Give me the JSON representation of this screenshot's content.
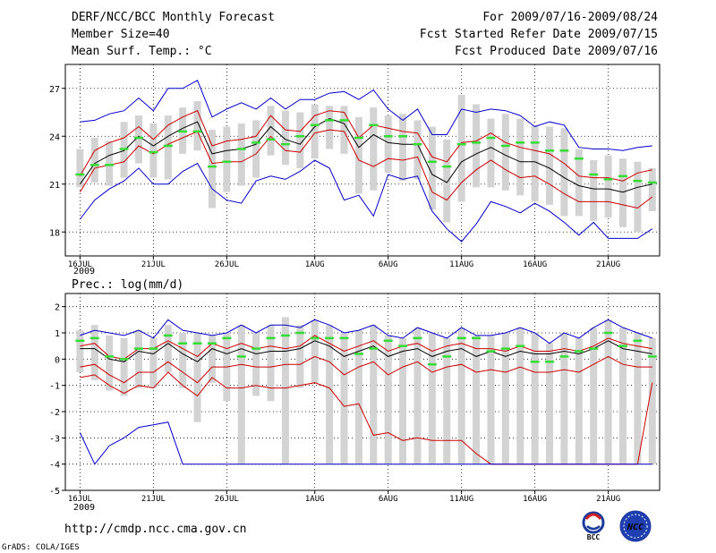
{
  "header": {
    "title": "DERF/NCC/BCC Monthly Forecast",
    "member_size": "Member Size=40",
    "variable": "Mean Surf. Temp.: °C",
    "period": "For 2009/07/16-2009/08/24",
    "refer_date": "Fcst Started Refer Date 2009/07/15",
    "produced_date": "Fcst Produced Date 2009/07/16"
  },
  "precip_title": "Prec.: log(mm/d)",
  "year_label": "2009",
  "footer": {
    "url": "http://cmdp.ncc.cma.gov.cn",
    "grads": "GrADS: COLA/IGES",
    "logo_bcc": "BCC",
    "logo_ncc": "NCC"
  },
  "colors": {
    "ensemble_mean": "#000000",
    "spread_inner": "#cc0000",
    "spread_outer": "#0000cc",
    "observed": "#33dd33",
    "box": "#d3d3d3",
    "grid": "#000000"
  },
  "chart_data": [
    {
      "type": "line",
      "name": "temperature",
      "xlabel": "",
      "ylabel": "Mean Surf. Temp. (°C)",
      "x_start_day": 0,
      "x_range": [
        -1,
        39.5
      ],
      "ylim": [
        16.5,
        28.5
      ],
      "yticks": [
        18,
        21,
        24,
        27
      ],
      "xtick_days": [
        0,
        5,
        10,
        16,
        21,
        26,
        31,
        36
      ],
      "xtick_labels": [
        "16JUL",
        "21JUL",
        "26JUL",
        "1AUG",
        "6AUG",
        "11AUG",
        "16AUG",
        "21AUG"
      ],
      "grid": true,
      "series": [
        {
          "name": "max",
          "values": [
            18.8,
            20.0,
            20.7,
            21.2,
            22.0,
            21.0,
            21.0,
            21.8,
            22.3,
            20.7,
            20.0,
            19.8,
            21.2,
            21.5,
            21.3,
            21.8,
            22.5,
            22.0,
            20.0,
            20.3,
            19.0,
            21.6,
            21.3,
            21.5,
            19.3,
            18.2,
            17.4,
            18.5,
            19.9,
            19.6,
            19.2,
            19.8,
            19.3,
            18.6,
            17.8,
            18.6,
            17.6,
            17.6,
            17.6,
            18.2
          ],
          "color": "#0000cc"
        },
        {
          "name": "q75",
          "values": [
            21.5,
            23.1,
            23.6,
            23.9,
            24.6,
            23.8,
            24.7,
            25.2,
            25.6,
            23.4,
            23.7,
            23.8,
            24.0,
            25.3,
            24.4,
            24.3,
            25.3,
            25.6,
            25.5,
            23.9,
            24.7,
            24.5,
            24.3,
            24.2,
            22.7,
            22.4,
            23.6,
            23.7,
            24.2,
            23.6,
            23.3,
            23.1,
            22.9,
            22.3,
            21.5,
            21.4,
            21.4,
            21.2,
            21.7,
            21.9
          ],
          "color": "#cc0000"
        },
        {
          "name": "mean",
          "values": [
            21.0,
            22.3,
            22.8,
            23.1,
            24.0,
            23.4,
            24.0,
            24.5,
            24.9,
            22.9,
            23.1,
            23.2,
            23.5,
            24.6,
            23.8,
            23.5,
            24.6,
            25.1,
            24.8,
            23.3,
            24.1,
            23.6,
            23.5,
            23.5,
            21.6,
            21.1,
            22.4,
            22.9,
            23.3,
            22.8,
            22.4,
            22.4,
            22.0,
            21.4,
            20.9,
            20.7,
            20.7,
            20.5,
            20.8,
            21.0
          ],
          "color": "#000000"
        },
        {
          "name": "q25",
          "values": [
            20.5,
            22.0,
            22.2,
            22.4,
            23.4,
            22.9,
            23.5,
            23.9,
            24.3,
            22.3,
            22.4,
            22.4,
            22.9,
            24.0,
            23.1,
            23.0,
            24.2,
            24.4,
            24.3,
            22.5,
            22.1,
            22.6,
            22.5,
            22.7,
            20.5,
            20.0,
            21.1,
            21.9,
            22.5,
            21.9,
            21.4,
            21.5,
            21.0,
            20.4,
            19.9,
            19.9,
            19.9,
            19.7,
            19.5,
            20.2
          ],
          "color": "#cc0000"
        },
        {
          "name": "min",
          "values": [
            24.9,
            25.0,
            25.4,
            25.6,
            26.4,
            25.6,
            27.0,
            27.0,
            27.5,
            25.2,
            25.7,
            26.1,
            25.7,
            26.4,
            25.7,
            26.3,
            26.3,
            26.7,
            26.8,
            26.3,
            26.9,
            25.7,
            25.0,
            25.7,
            24.1,
            24.1,
            25.7,
            25.5,
            25.7,
            25.6,
            25.3,
            24.6,
            24.9,
            24.7,
            23.3,
            23.2,
            23.2,
            23.1,
            23.3,
            23.4
          ],
          "color": "#0000cc"
        }
      ],
      "observed": [
        21.6,
        22.2,
        22.2,
        23.2,
        23.9,
        23.0,
        23.4,
        24.3,
        24.3,
        22.1,
        22.4,
        23.2,
        23.6,
        23.8,
        23.5,
        24.0,
        24.7,
        25.0,
        25.0,
        23.9,
        24.7,
        24.0,
        24.0,
        23.5,
        22.4,
        22.1,
        23.5,
        23.6,
        23.9,
        23.4,
        23.6,
        23.6,
        23.1,
        23.1,
        22.6,
        21.6,
        21.3,
        21.5,
        21.2,
        21.1
      ],
      "box_low": [
        20.8,
        21.1,
        20.9,
        21.4,
        22.3,
        21.4,
        21.3,
        22.9,
        23.1,
        19.5,
        20.5,
        20.9,
        21.4,
        22.8,
        22.2,
        22.0,
        22.6,
        23.2,
        22.9,
        20.4,
        20.6,
        21.7,
        21.2,
        21.3,
        19.4,
        18.6,
        19.9,
        20.8,
        20.8,
        20.6,
        20.3,
        19.9,
        19.7,
        19.0,
        19.0,
        18.7,
        18.9,
        18.3,
        18.0,
        19.3
      ],
      "box_high": [
        23.2,
        23.9,
        23.7,
        24.9,
        25.3,
        24.8,
        25.3,
        25.8,
        26.2,
        24.4,
        24.6,
        24.8,
        25.0,
        25.9,
        25.6,
        25.5,
        26.0,
        25.9,
        25.9,
        25.2,
        25.8,
        25.3,
        25.4,
        25.0,
        24.6,
        23.8,
        26.6,
        26.0,
        25.1,
        25.4,
        25.1,
        24.7,
        24.6,
        24.5,
        23.2,
        22.5,
        22.8,
        22.6,
        22.4,
        22.0
      ]
    },
    {
      "type": "line",
      "name": "precipitation",
      "title": "Prec.: log(mm/d)",
      "xlabel": "",
      "ylabel": "log(mm/d)",
      "x_start_day": 0,
      "x_range": [
        -1,
        39.5
      ],
      "ylim": [
        -5,
        2.5
      ],
      "yticks": [
        -5,
        -4,
        -3,
        -2,
        -1,
        0,
        1,
        2
      ],
      "xtick_days": [
        0,
        5,
        10,
        16,
        21,
        26,
        31,
        36
      ],
      "xtick_labels": [
        "16JUL",
        "21JUL",
        "26JUL",
        "1AUG",
        "6AUG",
        "11AUG",
        "16AUG",
        "21AUG"
      ],
      "grid": true,
      "series": [
        {
          "name": "max",
          "values": [
            0.9,
            1.1,
            1.0,
            0.9,
            1.1,
            0.8,
            1.5,
            1.1,
            1.0,
            0.9,
            1.0,
            1.3,
            1.0,
            1.3,
            1.3,
            1.2,
            1.5,
            1.3,
            1.0,
            1.1,
            1.3,
            0.9,
            0.8,
            1.2,
            1.0,
            0.8,
            1.2,
            0.9,
            0.9,
            1.0,
            1.2,
            1.0,
            0.6,
            1.0,
            0.8,
            1.2,
            1.5,
            1.2,
            1.0,
            0.8
          ],
          "color": "#0000cc"
        },
        {
          "name": "q75",
          "values": [
            0.5,
            0.6,
            0.1,
            0.0,
            0.4,
            0.4,
            0.7,
            0.4,
            0.1,
            0.6,
            0.4,
            0.6,
            0.4,
            0.5,
            0.4,
            0.5,
            0.9,
            0.6,
            0.3,
            0.5,
            0.7,
            0.3,
            0.5,
            0.6,
            0.3,
            0.5,
            0.6,
            0.4,
            0.4,
            0.3,
            0.5,
            0.3,
            0.3,
            0.4,
            0.3,
            0.5,
            0.8,
            0.6,
            0.5,
            0.4
          ],
          "color": "#cc0000"
        },
        {
          "name": "mean",
          "values": [
            0.4,
            0.4,
            0.0,
            -0.1,
            0.3,
            0.2,
            0.6,
            0.2,
            -0.1,
            0.4,
            0.2,
            0.4,
            0.2,
            0.3,
            0.3,
            0.4,
            0.7,
            0.5,
            0.1,
            0.3,
            0.5,
            0.1,
            0.3,
            0.4,
            0.1,
            0.3,
            0.4,
            0.1,
            0.3,
            0.1,
            0.3,
            0.2,
            0.2,
            0.3,
            0.2,
            0.4,
            0.7,
            0.4,
            0.3,
            0.2
          ],
          "color": "#000000"
        },
        {
          "name": "q25",
          "values": [
            -0.3,
            -0.2,
            -0.6,
            -0.9,
            -0.5,
            -0.5,
            -0.1,
            -0.5,
            -0.9,
            -0.3,
            -0.3,
            -0.2,
            -0.3,
            -0.3,
            -0.2,
            -0.2,
            0.1,
            -0.1,
            -0.6,
            -0.3,
            -0.1,
            -0.6,
            -0.3,
            -0.1,
            -0.5,
            -0.3,
            -0.2,
            -0.5,
            -0.4,
            -0.5,
            -0.3,
            -0.5,
            -0.5,
            -0.4,
            -0.5,
            -0.2,
            0.1,
            -0.2,
            -0.3,
            -0.3
          ],
          "color": "#cc0000"
        },
        {
          "name": "min",
          "values": [
            -0.7,
            -0.6,
            -1.0,
            -1.3,
            -1.0,
            -1.1,
            -0.5,
            -1.0,
            -1.4,
            -0.7,
            -1.1,
            -1.1,
            -1.0,
            -1.1,
            -1.1,
            -1.0,
            -0.9,
            -1.1,
            -1.8,
            -1.7,
            -2.9,
            -2.8,
            -3.1,
            -3.0,
            -3.1,
            -3.1,
            -3.1,
            -3.6,
            -4.0,
            -4.0,
            -4.0,
            -4.0,
            -4.0,
            -4.0,
            -4.0,
            -4.0,
            -4.0,
            -4.0,
            -4.0,
            -0.9
          ],
          "color": "#cc0000"
        },
        {
          "name": "absmin",
          "values": [
            -2.8,
            -4.0,
            -3.3,
            -3.0,
            -2.6,
            -2.5,
            -2.4,
            -4.0,
            -4.0,
            -4.0,
            -4.0,
            -4.0,
            -4.0,
            -4.0,
            -4.0,
            -4.0,
            -4.0,
            -4.0,
            -4.0,
            -4.0,
            -4.0,
            -4.0,
            -4.0,
            -4.0,
            -4.0,
            -4.0,
            -4.0,
            -4.0,
            -4.0,
            -4.0,
            -4.0,
            -4.0,
            -4.0,
            -4.0,
            -4.0,
            -4.0,
            -4.0,
            -4.0,
            -4.0,
            -4.0
          ],
          "color": "#0000cc"
        }
      ],
      "observed": [
        0.7,
        0.8,
        0.1,
        0.0,
        0.4,
        0.4,
        0.9,
        0.6,
        0.6,
        0.6,
        0.8,
        0.1,
        0.4,
        0.8,
        0.9,
        1.0,
        0.8,
        0.8,
        0.8,
        0.2,
        0.4,
        0.7,
        0.5,
        0.8,
        -0.2,
        0.1,
        0.8,
        0.8,
        0.3,
        0.4,
        0.5,
        -0.1,
        -0.1,
        0.1,
        0.3,
        0.4,
        1.0,
        0.5,
        0.7,
        0.1
      ],
      "box_low": [
        -0.5,
        -0.8,
        -1.2,
        -1.4,
        -1.1,
        -1.1,
        -0.5,
        -1.1,
        -2.4,
        -0.9,
        -1.6,
        -4.0,
        -1.4,
        -1.6,
        -4.0,
        -1.1,
        -0.9,
        -4.0,
        -4.0,
        -4.0,
        -4.0,
        -4.0,
        -4.0,
        -4.0,
        -4.0,
        -4.0,
        -4.0,
        -4.0,
        -4.0,
        -4.0,
        -4.0,
        -4.0,
        -4.0,
        -4.0,
        -4.0,
        -4.0,
        -4.0,
        -4.0,
        -4.0,
        -4.0
      ],
      "box_high": [
        1.1,
        1.3,
        0.9,
        0.8,
        1.1,
        0.8,
        1.3,
        1.0,
        1.0,
        0.9,
        1.0,
        1.3,
        1.0,
        1.3,
        1.6,
        1.3,
        1.5,
        1.3,
        1.0,
        1.1,
        1.3,
        0.9,
        0.8,
        1.2,
        1.0,
        0.8,
        1.2,
        0.9,
        0.9,
        1.0,
        1.2,
        1.0,
        0.6,
        1.0,
        0.8,
        1.2,
        1.5,
        1.2,
        1.0,
        0.8
      ]
    }
  ]
}
